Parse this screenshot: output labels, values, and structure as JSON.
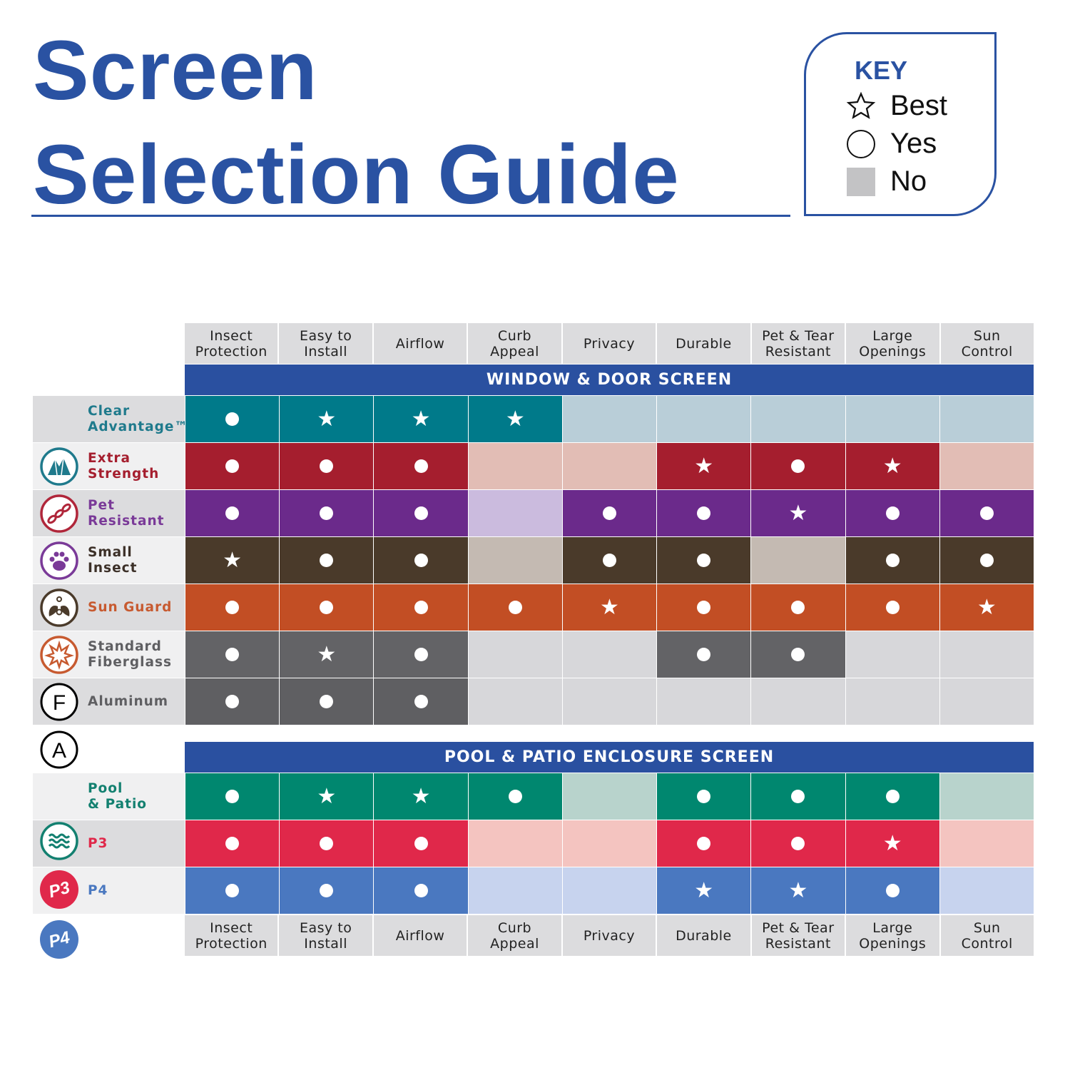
{
  "title": {
    "line1": "Screen",
    "line2": "Selection Guide"
  },
  "key": {
    "title": "KEY",
    "best": "Best",
    "yes": "Yes",
    "no": "No"
  },
  "columns": [
    "Insect\nProtection",
    "Easy to\nInstall",
    "Airflow",
    "Curb\nAppeal",
    "Privacy",
    "Durable",
    "Pet & Tear\nResistant",
    "Large\nOpenings",
    "Sun\nControl"
  ],
  "sections": [
    {
      "title": "WINDOW & DOOR SCREEN",
      "rows": [
        {
          "name": "Clear\nAdvantage™",
          "label_color": "#1f7a8c",
          "color": "#007a8a",
          "light": "#b9ced8",
          "bg": "#dcdcde",
          "values": [
            "Y",
            "S",
            "S",
            "S",
            "N",
            "N",
            "N",
            "N",
            "N"
          ]
        },
        {
          "name": "Extra\nStrength",
          "label_color": "#a51e2e",
          "color": "#a51e2e",
          "light": "#e2bdb5",
          "bg": "#f0f0f1",
          "values": [
            "Y",
            "Y",
            "Y",
            "N",
            "N",
            "S",
            "Y",
            "S",
            "N"
          ]
        },
        {
          "name": "Pet\nResistant",
          "label_color": "#7a3a98",
          "color": "#6b2a8b",
          "light": "#cbbbde",
          "bg": "#dcdcde",
          "values": [
            "Y",
            "Y",
            "Y",
            "N",
            "Y",
            "Y",
            "S",
            "Y",
            "Y"
          ]
        },
        {
          "name": "Small\nInsect",
          "label_color": "#3c3028",
          "color": "#4a3a2a",
          "light": "#c4bab2",
          "bg": "#f0f0f1",
          "values": [
            "S",
            "Y",
            "Y",
            "N",
            "Y",
            "Y",
            "N",
            "Y",
            "Y"
          ]
        },
        {
          "name": "Sun Guard",
          "label_color": "#c75a30",
          "color": "#c24e24",
          "light": "#e8bca8",
          "bg": "#dcdcde",
          "values": [
            "Y",
            "Y",
            "Y",
            "Y",
            "S",
            "Y",
            "Y",
            "Y",
            "S"
          ]
        },
        {
          "name": "Standard\nFiberglass",
          "label_color": "#5f5f62",
          "color": "#636366",
          "light": "#d7d7da",
          "bg": "#f0f0f1",
          "values": [
            "Y",
            "S",
            "Y",
            "N",
            "N",
            "Y",
            "Y",
            "N",
            "N"
          ]
        },
        {
          "name": "Aluminum",
          "label_color": "#5f5f62",
          "color": "#5f5f62",
          "light": "#d7d7da",
          "bg": "#dcdcde",
          "values": [
            "Y",
            "Y",
            "Y",
            "N",
            "N",
            "N",
            "N",
            "N",
            "N"
          ]
        }
      ]
    },
    {
      "title": "POOL & PATIO ENCLOSURE SCREEN",
      "rows": [
        {
          "name": "Pool\n& Patio",
          "label_color": "#138070",
          "color": "#00876f",
          "light": "#b8d3cc",
          "bg": "#f0f0f1",
          "values": [
            "Y",
            "S",
            "S",
            "Y",
            "N",
            "Y",
            "Y",
            "Y",
            "N"
          ]
        },
        {
          "name": "P3",
          "label_color": "#e0284a",
          "color": "#e0284a",
          "light": "#f4c4c0",
          "bg": "#dcdcde",
          "values": [
            "Y",
            "Y",
            "Y",
            "N",
            "N",
            "Y",
            "Y",
            "S",
            "N"
          ]
        },
        {
          "name": "P4",
          "label_color": "#4a78c0",
          "color": "#4a78c0",
          "light": "#c7d3ee",
          "bg": "#f0f0f1",
          "values": [
            "Y",
            "Y",
            "Y",
            "N",
            "N",
            "S",
            "S",
            "Y",
            "N"
          ]
        }
      ]
    }
  ],
  "icons": [
    "mountain-icon",
    "chain-icon",
    "paw-icon",
    "insect-icon",
    "starburst-icon",
    "letter-f-icon",
    "letter-a-icon",
    "waves-icon",
    "p3-badge-icon",
    "p4-badge-icon"
  ],
  "icon_letters": {
    "f": "F",
    "a": "A",
    "p3": "P3",
    "p4": "P4"
  },
  "brand_color": "#2a52a2"
}
